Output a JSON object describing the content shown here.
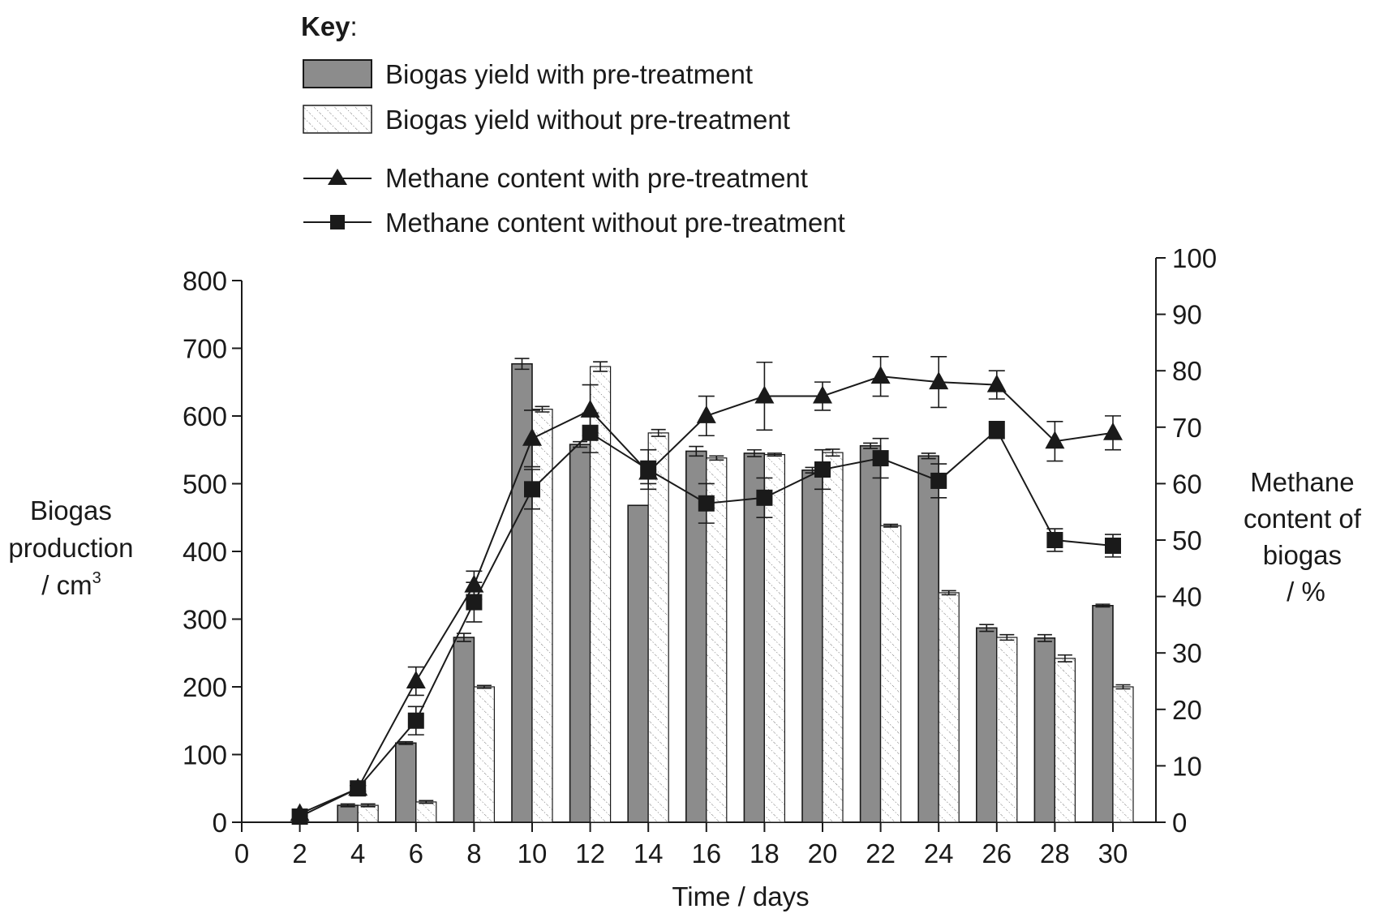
{
  "chart_data": {
    "type": "bar",
    "key_title": "Key",
    "key_colon": ":",
    "x": [
      2,
      4,
      6,
      8,
      10,
      12,
      14,
      16,
      18,
      20,
      22,
      24,
      26,
      28,
      30
    ],
    "x_ticks": [
      "0",
      "2",
      "4",
      "6",
      "8",
      "10",
      "12",
      "14",
      "16",
      "18",
      "20",
      "22",
      "24",
      "26",
      "28",
      "30"
    ],
    "xlabel": "Time / days",
    "xlim": [
      0,
      31
    ],
    "ylabel_left_lines": [
      "Biogas",
      "production",
      "/ cm"
    ],
    "ylabel_left_sup": "3",
    "ylim_left": [
      0,
      800
    ],
    "y_ticks_left": [
      "0",
      "100",
      "200",
      "300",
      "400",
      "500",
      "600",
      "700",
      "800"
    ],
    "ylabel_right_lines": [
      "Methane",
      "content of",
      "biogas",
      "/ %"
    ],
    "ylim_right": [
      0,
      100
    ],
    "y_ticks_right": [
      "0",
      "10",
      "20",
      "30",
      "40",
      "50",
      "60",
      "70",
      "80",
      "90",
      "100"
    ],
    "series": [
      {
        "name": "Biogas yield with pre-treatment",
        "kind": "bar",
        "axis": "left",
        "style": "solid",
        "color": "#8c8c8c",
        "values": [
          0,
          25,
          117,
          273,
          677,
          558,
          468,
          548,
          545,
          520,
          556,
          541,
          287,
          272,
          320
        ],
        "errors": [
          0,
          2,
          2,
          6,
          8,
          4,
          0,
          7,
          5,
          4,
          4,
          4,
          5,
          5,
          2
        ]
      },
      {
        "name": "Biogas yield without pre-treatment",
        "kind": "bar",
        "axis": "left",
        "style": "hatched",
        "color": "#ffffff",
        "values": [
          0,
          25,
          30,
          200,
          610,
          673,
          575,
          538,
          543,
          546,
          438,
          339,
          273,
          242,
          200
        ],
        "errors": [
          0,
          2,
          2,
          2,
          4,
          7,
          5,
          3,
          2,
          5,
          2,
          3,
          4,
          5,
          3
        ]
      },
      {
        "name": "Methane content with pre-treatment",
        "kind": "line",
        "axis": "right",
        "marker": "triangle",
        "color": "#1a1a1a",
        "values": [
          1.5,
          6,
          25,
          42,
          68,
          73,
          62,
          72,
          75.5,
          75.5,
          79,
          78,
          77.5,
          67.5,
          69
        ],
        "errors": [
          0,
          0.5,
          2.5,
          2.5,
          5,
          4.5,
          2,
          3.5,
          6,
          2.5,
          3.5,
          4.5,
          2.5,
          3.5,
          3
        ]
      },
      {
        "name": "Methane content without pre-treatment",
        "kind": "line",
        "axis": "right",
        "marker": "square",
        "color": "#1a1a1a",
        "values": [
          1,
          6,
          18,
          39,
          59,
          69,
          62.5,
          56.5,
          57.5,
          62.5,
          64.5,
          60.5,
          69.5,
          50,
          49
        ],
        "errors": [
          0,
          0.5,
          2.5,
          3.5,
          3.5,
          3.5,
          3.5,
          3.5,
          3.5,
          3.5,
          3.5,
          3,
          1.5,
          2,
          2
        ]
      }
    ]
  }
}
